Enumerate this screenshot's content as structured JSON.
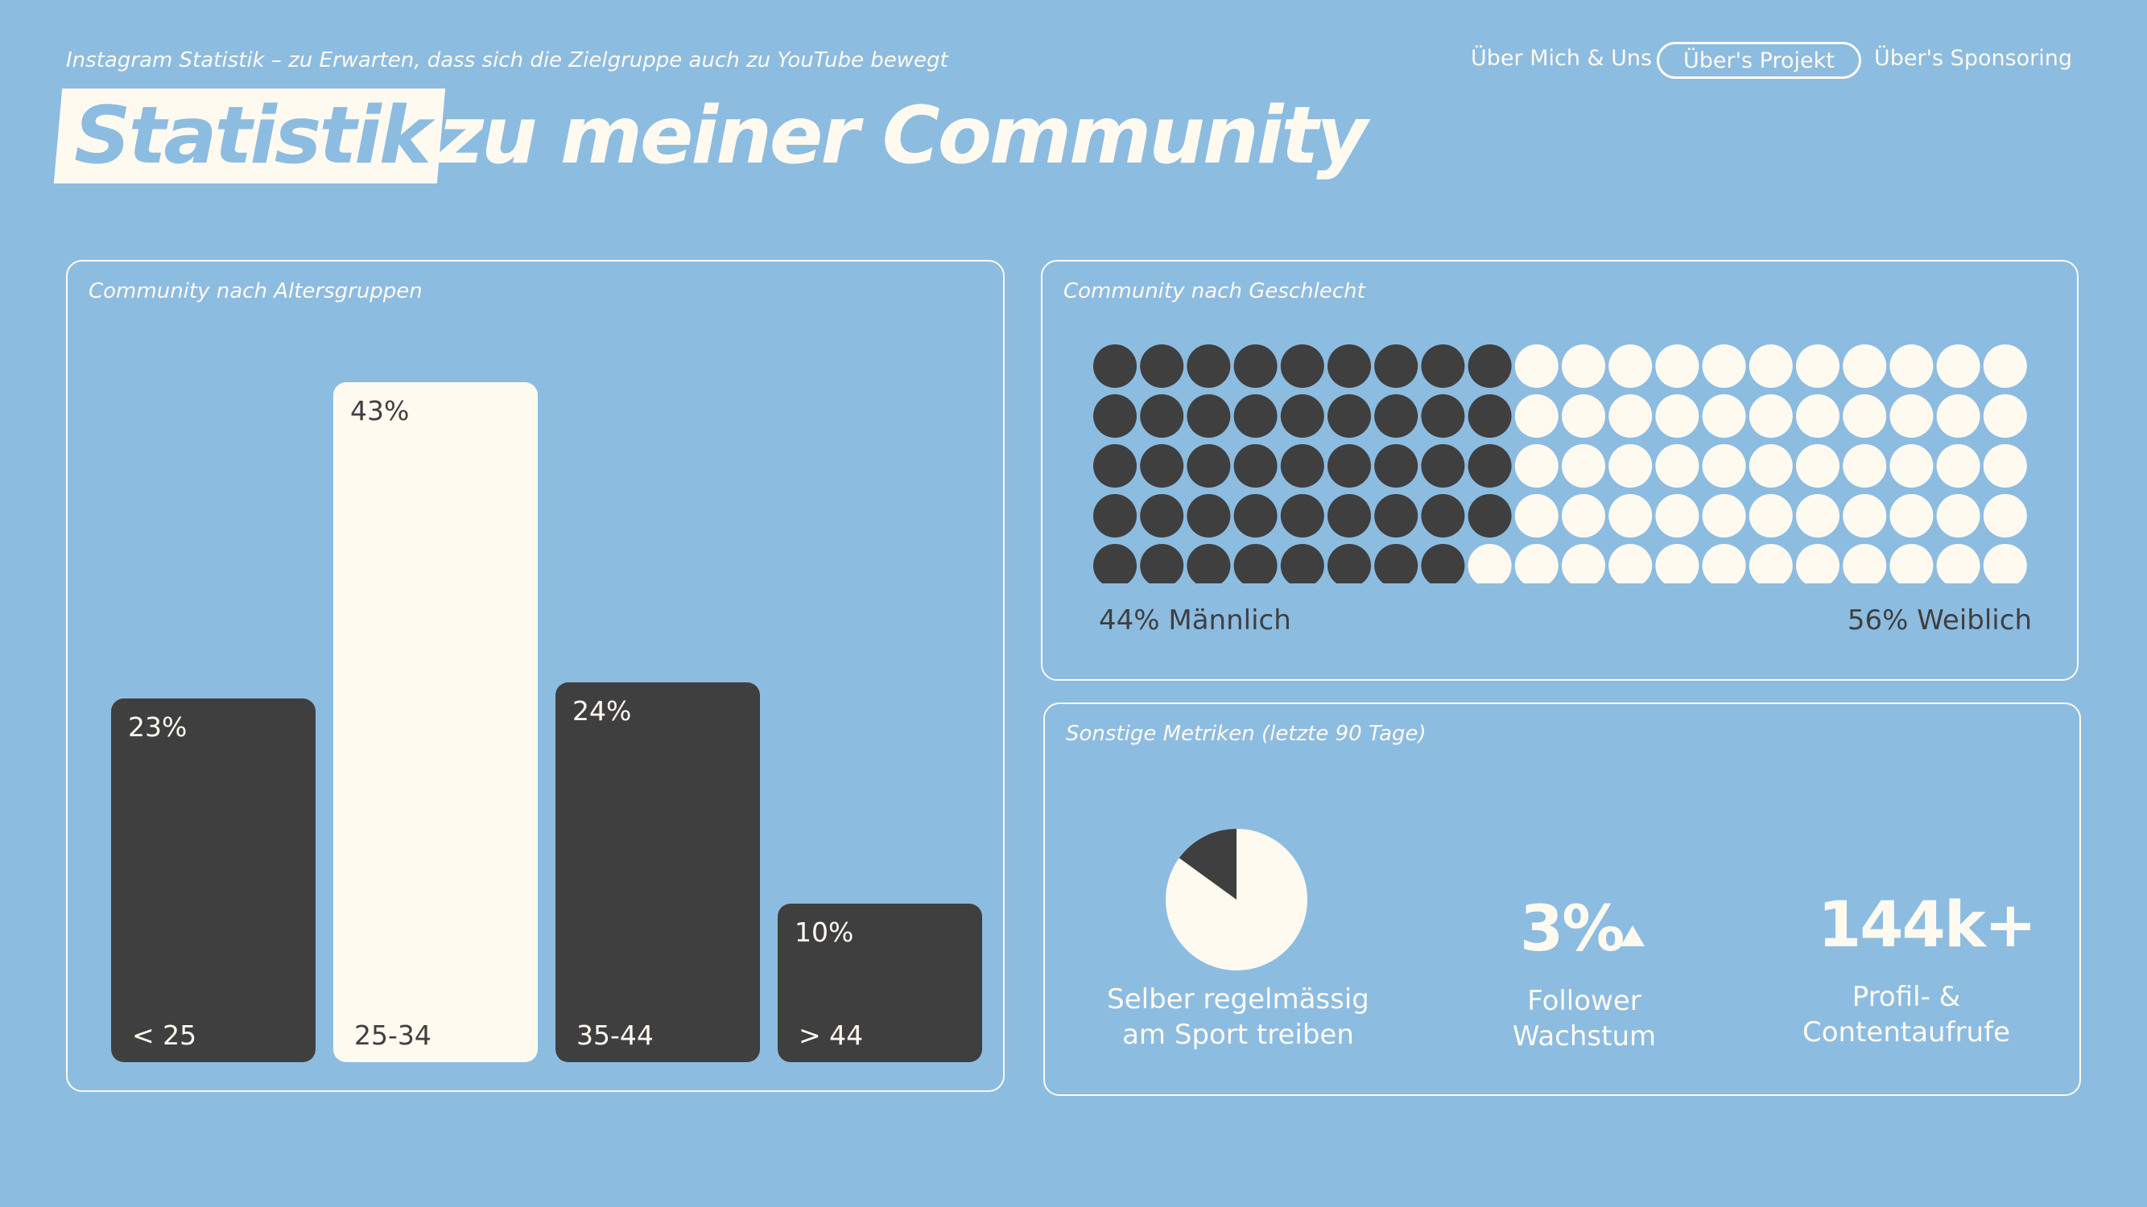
{
  "header": {
    "subtitle": "Instagram Statistik – zu Erwarten, dass sich die Zielgruppe auch zu YouTube bewegt",
    "title_highlight": "Statistik",
    "title_rest": "zu meiner Community"
  },
  "nav": {
    "items": [
      "Über Mich & Uns",
      "Über's Projekt",
      "Über's Sponsoring"
    ],
    "active_index": 1
  },
  "colors": {
    "background": "#8dbce1",
    "cream": "#fffaf0",
    "dark": "#3f3f3f"
  },
  "chart_data": [
    {
      "type": "bar",
      "title": "Community nach Altersgruppen",
      "categories": [
        "< 25",
        "25-34",
        "35-44",
        "> 44"
      ],
      "values": [
        23,
        43,
        24,
        10
      ],
      "value_labels": [
        "23%",
        "43%",
        "24%",
        "10%"
      ],
      "highlight_index": 1
    },
    {
      "type": "waffle",
      "title": "Community nach Geschlecht",
      "rows": 5,
      "cols": 20,
      "filled_dark": 44,
      "labels": [
        "44% Männlich",
        "56% Weiblich"
      ],
      "values": [
        44,
        56
      ]
    },
    {
      "type": "pie",
      "title": "Sonstige Metriken (letzte 90 Tage)",
      "values": [
        85,
        15
      ],
      "label": "Selber regelmässig am Sport treiben"
    }
  ],
  "metrics": {
    "pie_label_line1": "Selber regelmässig",
    "pie_label_line2": "am Sport treiben",
    "growth_value": "3%",
    "growth_label_line1": "Follower",
    "growth_label_line2": "Wachstum",
    "views_value": "144k+",
    "views_label_line1": "Profil- &",
    "views_label_line2": "Contentaufrufe"
  }
}
